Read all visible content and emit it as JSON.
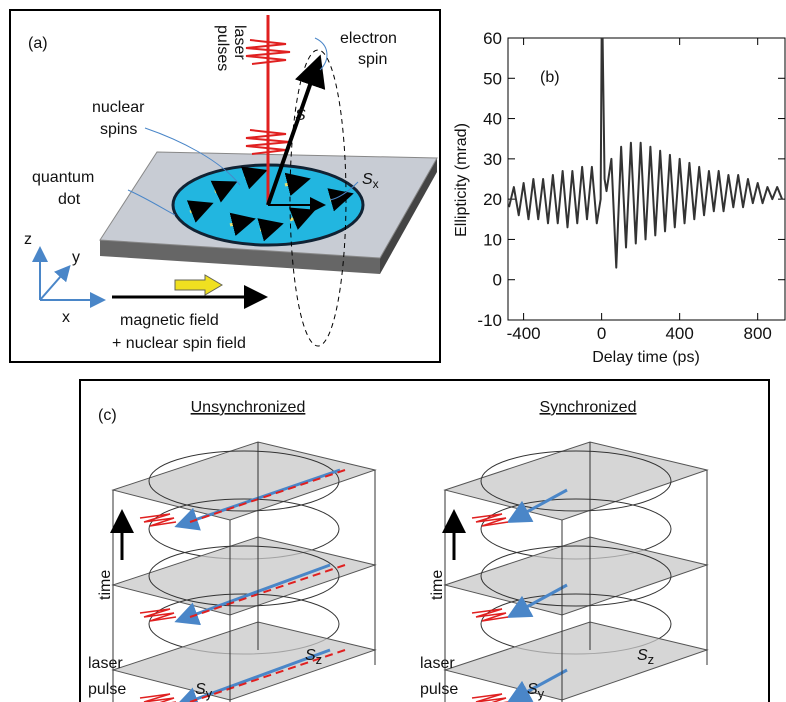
{
  "panel_a": {
    "label": "(a)",
    "laser_pulses": [
      "laser",
      "pulses"
    ],
    "electron_spin": [
      "electron",
      "spin"
    ],
    "nuclear_spins": [
      "nuclear",
      "spins"
    ],
    "quantum_dot": [
      "quantum",
      "dot"
    ],
    "spin_vector": "S",
    "sx": {
      "base": "S",
      "sub": "x"
    },
    "axes": {
      "z": "z",
      "y": "y",
      "x": "x"
    },
    "field": [
      "magnetic field",
      "+ nuclear spin field"
    ]
  },
  "chart_data": {
    "type": "line",
    "label": "(b)",
    "ylabel": "Ellipticity (mrad)",
    "xlabel": "Delay time (ps)",
    "xlim": [
      -480,
      940
    ],
    "xticks": [
      -400,
      0,
      400,
      800
    ],
    "ylim": [
      -10,
      60
    ],
    "yticks": [
      -10,
      0,
      10,
      20,
      30,
      40,
      50,
      60
    ],
    "series": [
      {
        "color": "#333333",
        "x": [
          -475,
          -450,
          -425,
          -400,
          -375,
          -350,
          -325,
          -300,
          -275,
          -250,
          -225,
          -200,
          -175,
          -150,
          -125,
          -100,
          -75,
          -50,
          -25,
          -5,
          0,
          5,
          15,
          25,
          50,
          75,
          100,
          125,
          150,
          175,
          200,
          225,
          250,
          275,
          300,
          325,
          350,
          375,
          400,
          425,
          450,
          475,
          500,
          525,
          550,
          575,
          600,
          625,
          650,
          675,
          700,
          725,
          750,
          775,
          800,
          825,
          850,
          875,
          900,
          925
        ],
        "values": [
          18,
          23,
          16,
          24,
          15,
          25,
          15,
          25,
          14,
          26,
          14,
          27,
          13,
          27,
          14,
          28,
          15,
          28,
          14,
          20,
          60,
          60,
          25,
          22,
          30,
          3,
          33,
          8,
          34,
          9,
          34,
          10,
          33,
          11,
          32,
          12,
          31,
          13,
          30,
          14,
          29,
          15,
          28,
          16,
          27,
          17,
          27,
          17,
          26,
          18,
          26,
          18,
          25,
          19,
          24,
          19,
          23,
          20,
          23,
          20
        ]
      }
    ]
  },
  "panel_c": {
    "label": "(c)",
    "left_title": "Unsynchronized",
    "right_title": "Synchronized",
    "time": "time",
    "laser_pulse": [
      "laser",
      "pulse"
    ],
    "sy": {
      "base": "S",
      "sub": "y"
    },
    "sz": {
      "base": "S",
      "sub": "z"
    }
  }
}
